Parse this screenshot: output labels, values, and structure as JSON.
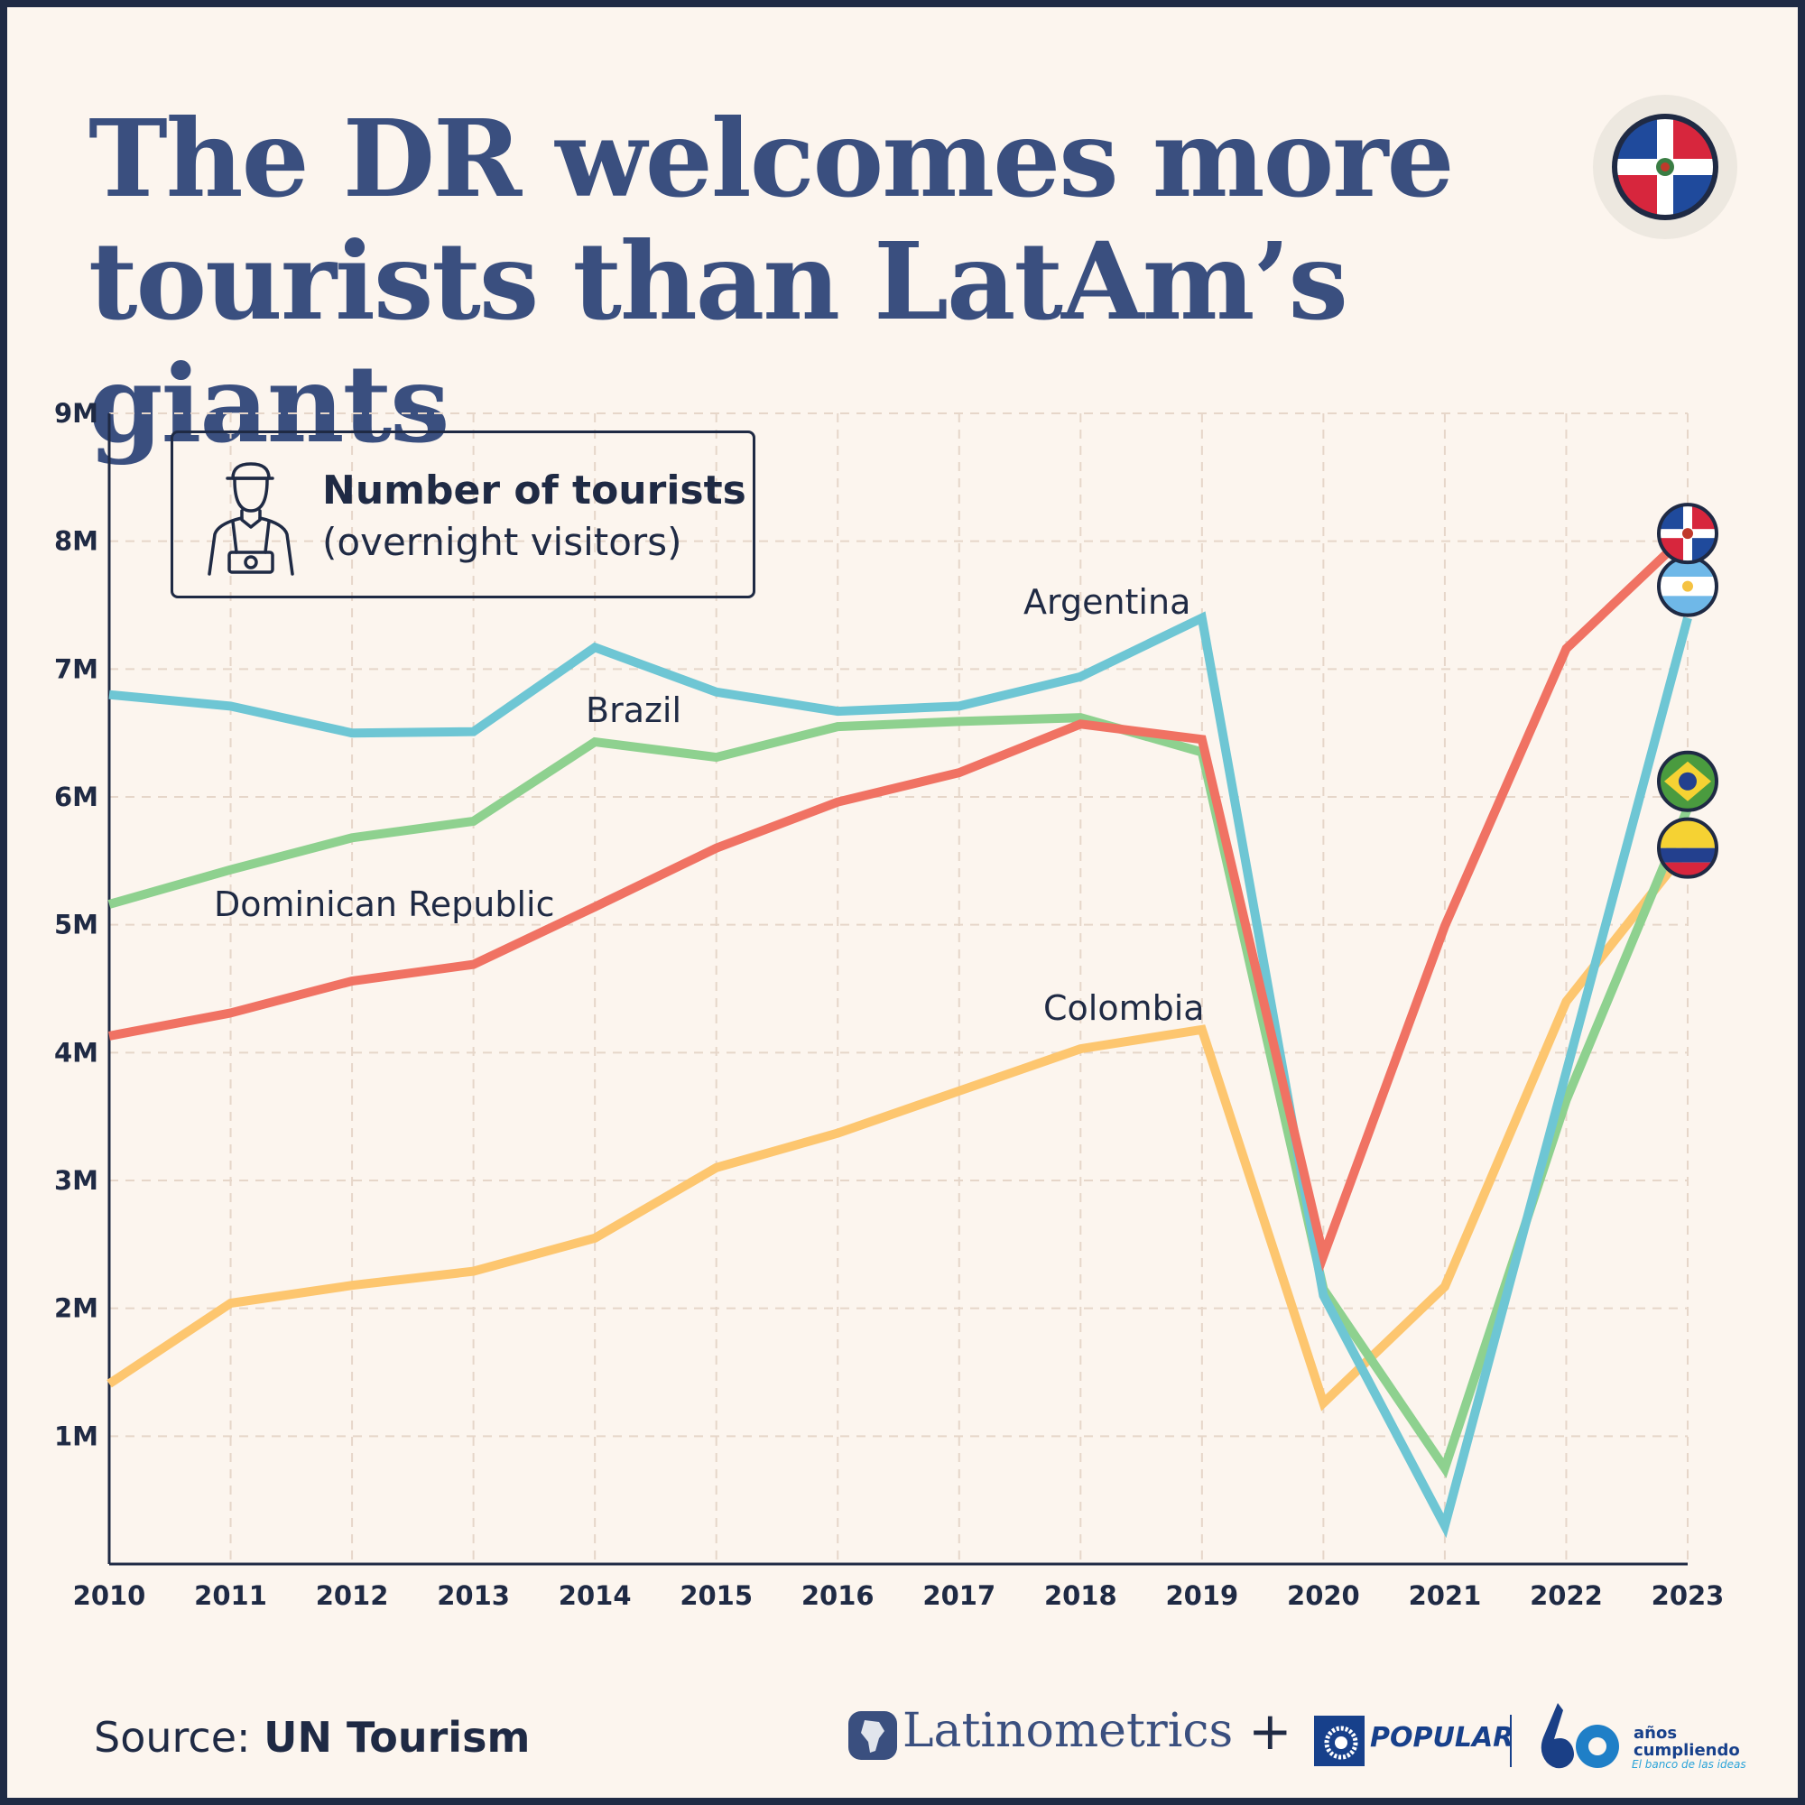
{
  "title": "The DR welcomes more tourists than LatAm’s giants",
  "legend": {
    "title": "Number of tourists",
    "subtitle": "(overnight visitors)",
    "icon": "tourist-with-camera-icon"
  },
  "source": {
    "prefix": "Source: ",
    "name": "UN Tourism"
  },
  "branding": {
    "latinometrics": "Latinometrics",
    "plus": "+",
    "popular": "POPULAR",
    "anos_line1": "años",
    "anos_line2": "cumpliendo",
    "tagline": "El banco de las ideas"
  },
  "colors": {
    "argentina": "#6ec6d4",
    "brazil": "#8ed18f",
    "dominican_republic": "#f07263",
    "colombia": "#fdc66f",
    "title": "#3a4f7f",
    "text": "#1f2a44",
    "background": "#fcf5ee"
  },
  "chart_data": {
    "type": "line",
    "x": [
      2010,
      2011,
      2012,
      2013,
      2014,
      2015,
      2016,
      2017,
      2018,
      2019,
      2020,
      2021,
      2022,
      2023
    ],
    "xlabels": [
      "2010",
      "2011",
      "2012",
      "2013",
      "2014",
      "2015",
      "2016",
      "2017",
      "2018",
      "2019",
      "2020",
      "2021",
      "2022",
      "2023"
    ],
    "ylim": [
      0,
      9000000
    ],
    "yticks": [
      1000000,
      2000000,
      3000000,
      4000000,
      5000000,
      6000000,
      7000000,
      8000000,
      9000000
    ],
    "ylabels": [
      "1M",
      "2M",
      "3M",
      "4M",
      "5M",
      "6M",
      "7M",
      "8M",
      "9M"
    ],
    "grid": true,
    "series": [
      {
        "name": "Argentina",
        "color": "#6ec6d4",
        "flag": "argentina-flag-icon",
        "values": [
          6800000,
          6710000,
          6500000,
          6510000,
          7170000,
          6820000,
          6670000,
          6710000,
          6940000,
          7400000,
          2100000,
          300000,
          3850000,
          7400000
        ]
      },
      {
        "name": "Brazil",
        "color": "#8ed18f",
        "flag": "brazil-flag-icon",
        "values": [
          5160000,
          5430000,
          5680000,
          5810000,
          6430000,
          6310000,
          6550000,
          6590000,
          6620000,
          6350000,
          2150000,
          750000,
          3630000,
          5910000
        ]
      },
      {
        "name": "Dominican Republic",
        "color": "#f07263",
        "flag": "dominican-republic-flag-icon",
        "values": [
          4130000,
          4310000,
          4560000,
          4690000,
          5140000,
          5600000,
          5960000,
          6190000,
          6570000,
          6450000,
          2410000,
          4990000,
          7160000,
          8060000
        ]
      },
      {
        "name": "Colombia",
        "color": "#fdc66f",
        "flag": "colombia-flag-icon",
        "values": [
          1410000,
          2040000,
          2180000,
          2290000,
          2550000,
          3100000,
          3370000,
          3700000,
          4030000,
          4180000,
          1260000,
          2170000,
          4400000,
          5600000
        ]
      }
    ]
  }
}
